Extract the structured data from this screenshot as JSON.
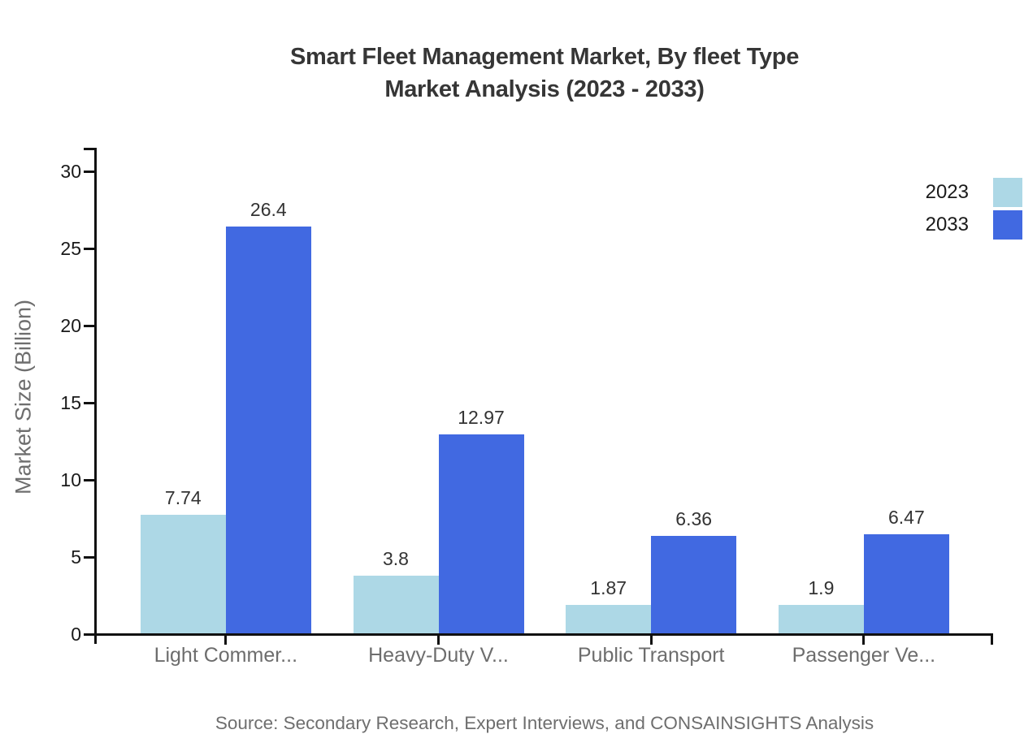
{
  "title": {
    "line1": "Smart Fleet Management Market, By fleet Type",
    "line2": "Market Analysis (2023 - 2033)"
  },
  "source": "Source: Secondary Research, Expert Interviews, and CONSAINSIGHTS Analysis",
  "legend": [
    {
      "label": "2023",
      "color": "#ADD8E6"
    },
    {
      "label": "2033",
      "color": "#4169E1"
    }
  ],
  "colors": {
    "axis": "#111111",
    "title_text": "#363636",
    "tick_label": "#1a1a1a",
    "value_label": "#333333",
    "category_label": "#6d6d6d",
    "muted_text": "#6e6e6e",
    "series_2023": "#ADD8E6",
    "series_2033": "#4169E1"
  },
  "chart_data": {
    "type": "bar",
    "title": "Smart Fleet Management Market, By fleet Type Market Analysis (2023 - 2033)",
    "categories": [
      "Light Commer...",
      "Heavy-Duty V...",
      "Public Transport",
      "Passenger Ve..."
    ],
    "series": [
      {
        "name": "2023",
        "color": "#ADD8E6",
        "values": [
          7.74,
          3.8,
          1.87,
          1.9
        ]
      },
      {
        "name": "2033",
        "color": "#4169E1",
        "values": [
          26.4,
          12.97,
          6.36,
          6.47
        ]
      }
    ],
    "xlabel": "",
    "ylabel": "Market Size (Billion)",
    "ylim": [
      0,
      30
    ],
    "yticks": [
      0,
      5,
      10,
      15,
      20,
      25,
      30
    ],
    "grid": false,
    "legend_position": "top-right-outside",
    "value_labels": true
  }
}
